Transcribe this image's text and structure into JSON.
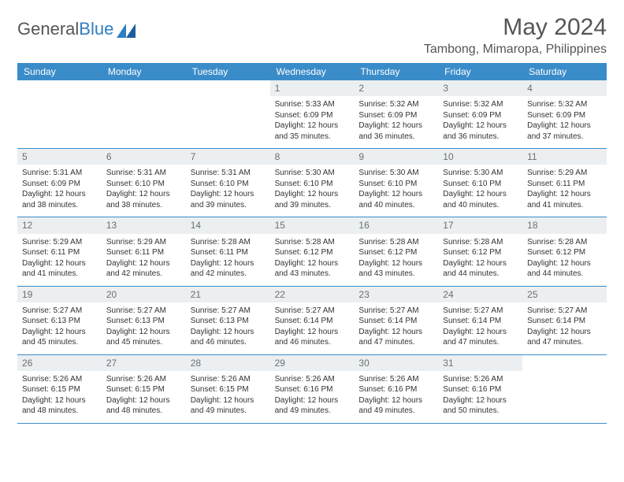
{
  "logo": {
    "text1": "General",
    "text2": "Blue"
  },
  "title": "May 2024",
  "subtitle": "Tambong, Mimaropa, Philippines",
  "colors": {
    "header_bg": "#3a8cc9",
    "header_text": "#ffffff",
    "daynum_bg": "#eceff1",
    "daynum_text": "#6a6f73",
    "rule": "#3a8cc9",
    "body_text": "#333333",
    "logo_gray": "#555555",
    "logo_blue": "#2f7ec2"
  },
  "day_labels": [
    "Sunday",
    "Monday",
    "Tuesday",
    "Wednesday",
    "Thursday",
    "Friday",
    "Saturday"
  ],
  "weeks": [
    [
      null,
      null,
      null,
      {
        "n": "1",
        "sr": "5:33 AM",
        "ss": "6:09 PM",
        "dl": "12 hours and 35 minutes."
      },
      {
        "n": "2",
        "sr": "5:32 AM",
        "ss": "6:09 PM",
        "dl": "12 hours and 36 minutes."
      },
      {
        "n": "3",
        "sr": "5:32 AM",
        "ss": "6:09 PM",
        "dl": "12 hours and 36 minutes."
      },
      {
        "n": "4",
        "sr": "5:32 AM",
        "ss": "6:09 PM",
        "dl": "12 hours and 37 minutes."
      }
    ],
    [
      {
        "n": "5",
        "sr": "5:31 AM",
        "ss": "6:09 PM",
        "dl": "12 hours and 38 minutes."
      },
      {
        "n": "6",
        "sr": "5:31 AM",
        "ss": "6:10 PM",
        "dl": "12 hours and 38 minutes."
      },
      {
        "n": "7",
        "sr": "5:31 AM",
        "ss": "6:10 PM",
        "dl": "12 hours and 39 minutes."
      },
      {
        "n": "8",
        "sr": "5:30 AM",
        "ss": "6:10 PM",
        "dl": "12 hours and 39 minutes."
      },
      {
        "n": "9",
        "sr": "5:30 AM",
        "ss": "6:10 PM",
        "dl": "12 hours and 40 minutes."
      },
      {
        "n": "10",
        "sr": "5:30 AM",
        "ss": "6:10 PM",
        "dl": "12 hours and 40 minutes."
      },
      {
        "n": "11",
        "sr": "5:29 AM",
        "ss": "6:11 PM",
        "dl": "12 hours and 41 minutes."
      }
    ],
    [
      {
        "n": "12",
        "sr": "5:29 AM",
        "ss": "6:11 PM",
        "dl": "12 hours and 41 minutes."
      },
      {
        "n": "13",
        "sr": "5:29 AM",
        "ss": "6:11 PM",
        "dl": "12 hours and 42 minutes."
      },
      {
        "n": "14",
        "sr": "5:28 AM",
        "ss": "6:11 PM",
        "dl": "12 hours and 42 minutes."
      },
      {
        "n": "15",
        "sr": "5:28 AM",
        "ss": "6:12 PM",
        "dl": "12 hours and 43 minutes."
      },
      {
        "n": "16",
        "sr": "5:28 AM",
        "ss": "6:12 PM",
        "dl": "12 hours and 43 minutes."
      },
      {
        "n": "17",
        "sr": "5:28 AM",
        "ss": "6:12 PM",
        "dl": "12 hours and 44 minutes."
      },
      {
        "n": "18",
        "sr": "5:28 AM",
        "ss": "6:12 PM",
        "dl": "12 hours and 44 minutes."
      }
    ],
    [
      {
        "n": "19",
        "sr": "5:27 AM",
        "ss": "6:13 PM",
        "dl": "12 hours and 45 minutes."
      },
      {
        "n": "20",
        "sr": "5:27 AM",
        "ss": "6:13 PM",
        "dl": "12 hours and 45 minutes."
      },
      {
        "n": "21",
        "sr": "5:27 AM",
        "ss": "6:13 PM",
        "dl": "12 hours and 46 minutes."
      },
      {
        "n": "22",
        "sr": "5:27 AM",
        "ss": "6:14 PM",
        "dl": "12 hours and 46 minutes."
      },
      {
        "n": "23",
        "sr": "5:27 AM",
        "ss": "6:14 PM",
        "dl": "12 hours and 47 minutes."
      },
      {
        "n": "24",
        "sr": "5:27 AM",
        "ss": "6:14 PM",
        "dl": "12 hours and 47 minutes."
      },
      {
        "n": "25",
        "sr": "5:27 AM",
        "ss": "6:14 PM",
        "dl": "12 hours and 47 minutes."
      }
    ],
    [
      {
        "n": "26",
        "sr": "5:26 AM",
        "ss": "6:15 PM",
        "dl": "12 hours and 48 minutes."
      },
      {
        "n": "27",
        "sr": "5:26 AM",
        "ss": "6:15 PM",
        "dl": "12 hours and 48 minutes."
      },
      {
        "n": "28",
        "sr": "5:26 AM",
        "ss": "6:15 PM",
        "dl": "12 hours and 49 minutes."
      },
      {
        "n": "29",
        "sr": "5:26 AM",
        "ss": "6:16 PM",
        "dl": "12 hours and 49 minutes."
      },
      {
        "n": "30",
        "sr": "5:26 AM",
        "ss": "6:16 PM",
        "dl": "12 hours and 49 minutes."
      },
      {
        "n": "31",
        "sr": "5:26 AM",
        "ss": "6:16 PM",
        "dl": "12 hours and 50 minutes."
      },
      null
    ]
  ],
  "labels": {
    "sunrise": "Sunrise:",
    "sunset": "Sunset:",
    "daylight": "Daylight:"
  }
}
